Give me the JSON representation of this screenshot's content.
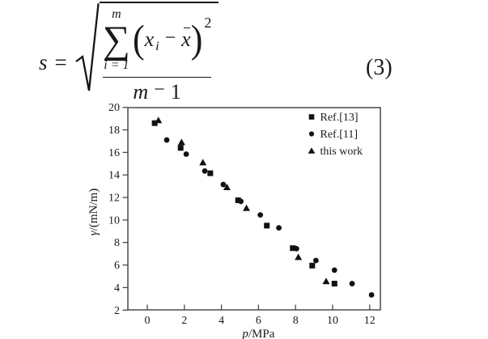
{
  "formula": {
    "lhs": "s",
    "rel": "=",
    "sum_upper": "m",
    "sum_op": "∑",
    "sum_lower_var": "i",
    "sum_lower_rel": "=",
    "sum_lower_num": "1",
    "lparen": "(",
    "num_var": "x",
    "num_var_sub": "i",
    "minus": "−",
    "mean_var": "x",
    "rparen": ")",
    "exponent": "2",
    "den_var": "m",
    "den_minus": "−",
    "den_num": "1",
    "eq_number": "(3)"
  },
  "chart_data": {
    "type": "scatter",
    "xlabel_italic": "p",
    "xlabel_rest": "/MPa",
    "ylabel_italic": "γ",
    "ylabel_rest": "/(mN/m)",
    "xlim": [
      -1.05,
      12.6
    ],
    "ylim": [
      2,
      20
    ],
    "xticks": [
      0,
      2,
      4,
      6,
      8,
      10,
      12
    ],
    "yticks": [
      2,
      4,
      6,
      8,
      10,
      12,
      14,
      16,
      18,
      20
    ],
    "grid": false,
    "legend_position": "top-right",
    "series": [
      {
        "name": "Ref.[13]",
        "marker": "square",
        "points": [
          [
            0.4,
            18.6
          ],
          [
            1.8,
            16.4
          ],
          [
            3.4,
            14.15
          ],
          [
            4.9,
            11.75
          ],
          [
            6.45,
            9.5
          ],
          [
            7.85,
            7.5
          ],
          [
            8.9,
            5.95
          ],
          [
            10.1,
            4.35
          ]
        ]
      },
      {
        "name": "Ref.[11]",
        "marker": "circle",
        "points": [
          [
            1.05,
            17.1
          ],
          [
            2.1,
            15.85
          ],
          [
            3.1,
            14.35
          ],
          [
            4.1,
            13.15
          ],
          [
            5.05,
            11.65
          ],
          [
            6.1,
            10.45
          ],
          [
            7.1,
            9.3
          ],
          [
            8.05,
            7.45
          ],
          [
            9.1,
            6.4
          ],
          [
            10.1,
            5.55
          ],
          [
            11.05,
            4.35
          ],
          [
            12.1,
            3.35
          ]
        ]
      },
      {
        "name": "this work",
        "marker": "triangle",
        "points": [
          [
            0.6,
            18.85
          ],
          [
            1.85,
            16.9
          ],
          [
            3.0,
            15.1
          ],
          [
            4.3,
            12.9
          ],
          [
            5.35,
            11.05
          ],
          [
            8.15,
            6.7
          ],
          [
            9.65,
            4.55
          ]
        ]
      }
    ]
  },
  "colors": {
    "marker": "#111111",
    "axis": "#4a4a4a",
    "text": "#1a1a1a",
    "background": "#ffffff"
  }
}
